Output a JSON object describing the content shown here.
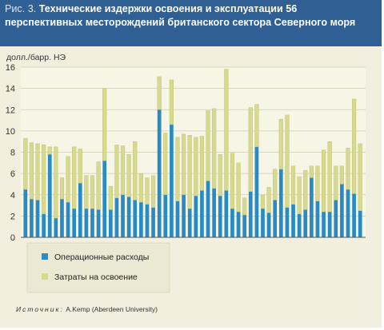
{
  "header": {
    "fig_label": "Рис. 3.",
    "title": "Технические издержки освоения и эксплуатации 56 перспективных месторождений британского сектора Северного моря"
  },
  "source": {
    "label": "Источник:",
    "text": "A.Kemp (Aberdeen University)"
  },
  "colors": {
    "operating": "#2a8bc4",
    "development": "#d6d98e",
    "header": "#2f5f93",
    "background": "#f2efde"
  },
  "chart_data": {
    "type": "bar",
    "stacked": true,
    "ylabel": "долл./барр. НЭ",
    "ylim": [
      0,
      16
    ],
    "yticks": [
      0,
      2,
      4,
      6,
      8,
      10,
      12,
      14,
      16
    ],
    "grid": true,
    "legend_position": "bottom-left",
    "series": [
      {
        "name": "Операционные расходы",
        "values": [
          4.5,
          3.6,
          3.5,
          2.2,
          7.8,
          1.8,
          3.6,
          3.3,
          2.7,
          5.1,
          2.7,
          2.7,
          2.6,
          7.2,
          2.6,
          3.7,
          4.0,
          3.8,
          3.5,
          3.3,
          3.1,
          2.8,
          12.0,
          4.0,
          10.6,
          3.4,
          4.0,
          2.7,
          3.9,
          4.4,
          5.3,
          4.6,
          3.9,
          4.4,
          2.7,
          2.4,
          2.1,
          4.3,
          8.5,
          2.7,
          2.3,
          3.5,
          6.4,
          2.8,
          3.1,
          2.2,
          2.6,
          5.6,
          3.4,
          2.4,
          2.4,
          3.5,
          5.0,
          4.5,
          4.1,
          2.5
        ],
        "color": "#2a8bc4"
      },
      {
        "name": "Затраты на освоение",
        "values": [
          4.8,
          5.3,
          5.3,
          6.5,
          0.7,
          6.7,
          2.0,
          4.3,
          5.8,
          3.2,
          3.1,
          3.1,
          4.5,
          6.8,
          2.2,
          5.0,
          4.6,
          4.0,
          5.5,
          2.7,
          2.5,
          3.0,
          3.1,
          5.8,
          4.2,
          6.0,
          5.7,
          6.9,
          5.5,
          5.1,
          6.6,
          7.5,
          3.9,
          11.4,
          5.2,
          4.6,
          1.6,
          7.9,
          4.0,
          1.3,
          2.4,
          2.9,
          4.7,
          8.7,
          3.6,
          3.5,
          3.7,
          1.1,
          3.3,
          5.8,
          6.6,
          3.2,
          1.7,
          3.9,
          8.9,
          6.3
        ]
      }
    ]
  }
}
